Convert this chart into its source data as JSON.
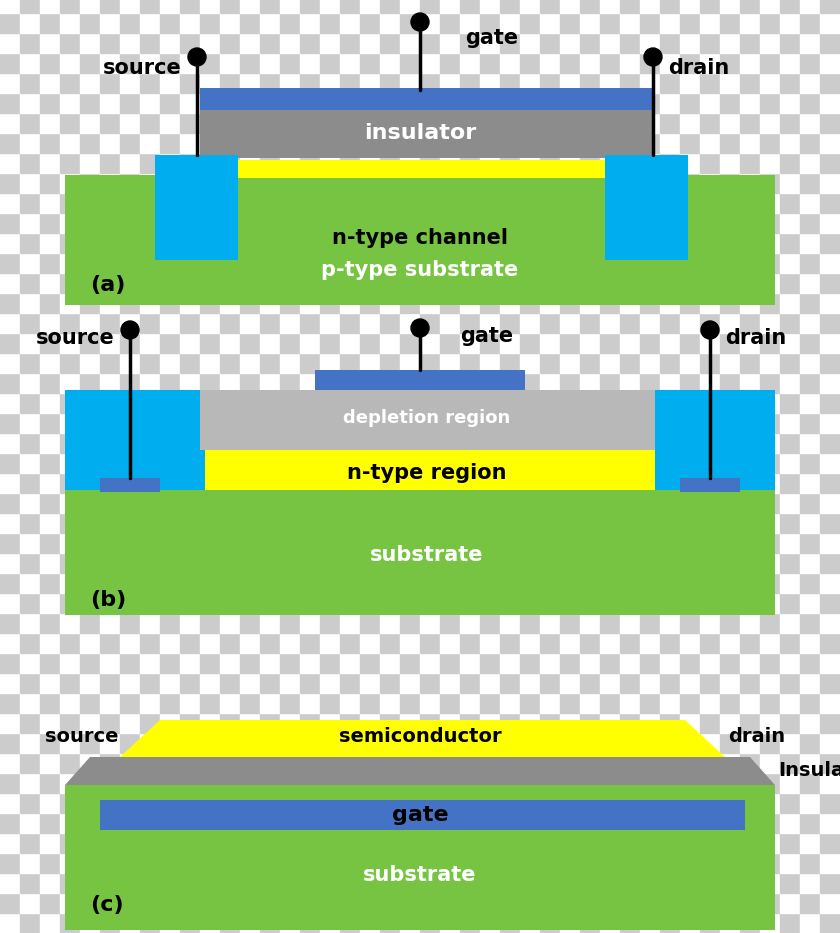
{
  "colors": {
    "green": "#76c442",
    "blue": "#4472c4",
    "cyan": "#00aeef",
    "yellow": "#ffff00",
    "gray": "#8c8c8c",
    "light_gray": "#b8b8b8",
    "black": "#000000",
    "white": "#ffffff"
  },
  "checker_size": 20,
  "checker_c1": "#ffffff",
  "checker_c2": "#cccccc",
  "diagram_a": {
    "label": "(a)",
    "texts": {
      "gate": "gate",
      "source": "source",
      "drain": "drain",
      "insulator": "insulator",
      "n_channel": "n-type channel",
      "p_substrate": "p-type substrate"
    }
  },
  "diagram_b": {
    "label": "(b)",
    "texts": {
      "gate": "gate",
      "source": "source",
      "drain": "drain",
      "depletion": "depletion region",
      "n_region": "n-type region",
      "substrate": "substrate"
    }
  },
  "diagram_c": {
    "label": "(c)",
    "texts": {
      "source": "source",
      "drain": "drain",
      "semiconductor": "semiconductor",
      "insulator": "Insulator",
      "gate": "gate",
      "substrate": "substrate"
    }
  }
}
